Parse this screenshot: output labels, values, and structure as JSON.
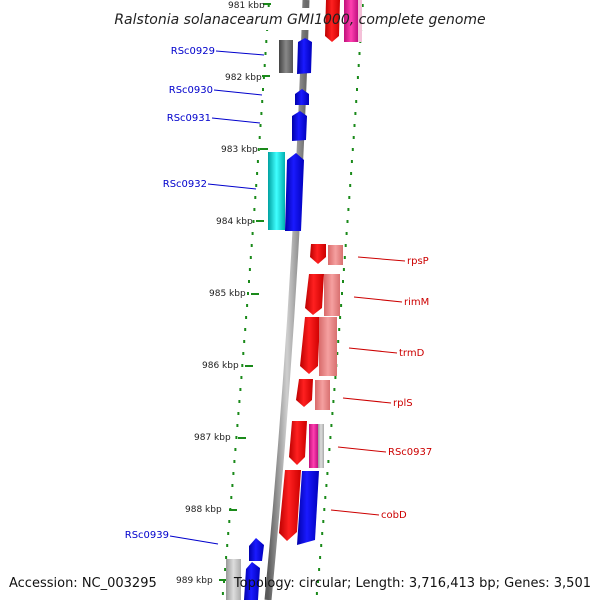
{
  "title": "Ralstonia solanacearum GMI1000, complete genome",
  "footer": {
    "accession": "Accession: NC_003295",
    "topology": "Topology: circular; Length: 3,716,413 bp; Genes: 3,501"
  },
  "kbp_labels": [
    "981 kbp",
    "982 kbp",
    "983 kbp",
    "984 kbp",
    "985 kbp",
    "986 kbp",
    "987 kbp",
    "988 kbp",
    "989 kbp"
  ],
  "left_genes": [
    "RSc0929",
    "RSc0930",
    "RSc0931",
    "RSc0932",
    "RSc0939"
  ],
  "right_genes": [
    "rpsP",
    "rimM",
    "trmD",
    "rplS",
    "RSc0937",
    "cobD"
  ],
  "colors": {
    "forward": "#0000ee",
    "reverse": "#ee0000",
    "left_label": "#0000cc",
    "right_label": "#cc0000",
    "tick_dots": "#1a8a1a",
    "backbone": "#8a8a8a"
  }
}
